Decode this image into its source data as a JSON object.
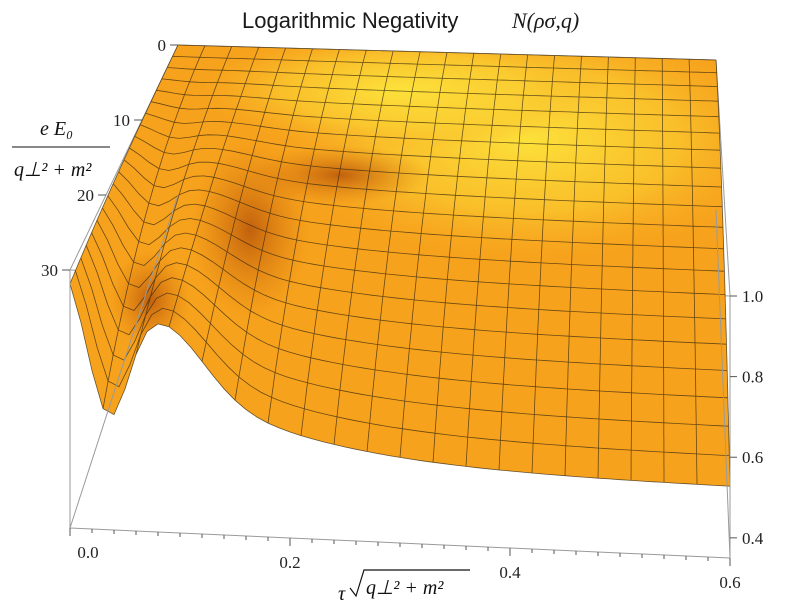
{
  "chart_data": {
    "type": "surface",
    "title": "Logarithmic Negativity",
    "title_math": "N(ρσ,q)",
    "xlabel": "τ√(q⊥² + m²)",
    "ylabel": "e E₀ / (q⊥² + m²)",
    "zlabel": "",
    "xlim": [
      0.0,
      0.6
    ],
    "ylim": [
      0,
      30
    ],
    "zlim": [
      0.35,
      1.0
    ],
    "x_ticks": [
      "0.0",
      "0.2",
      "0.4",
      "0.6"
    ],
    "y_ticks": [
      "0",
      "10",
      "20",
      "30"
    ],
    "z_ticks": [
      "0.4",
      "0.6",
      "0.8",
      "1.0"
    ],
    "surface_color": "#f7a21c",
    "highlight_color": "#fbe23a",
    "mesh_color": "#333333",
    "box_color": "#9a9a9a",
    "mesh_lines": 20,
    "description_free_values": {
      "z_at_y0": "≈ 1.0 for all τ",
      "z_at_y30_tau0": 0.92,
      "z_at_y30_tau0.04": 0.55,
      "z_at_y30_tau0.6": 0.5
    }
  }
}
